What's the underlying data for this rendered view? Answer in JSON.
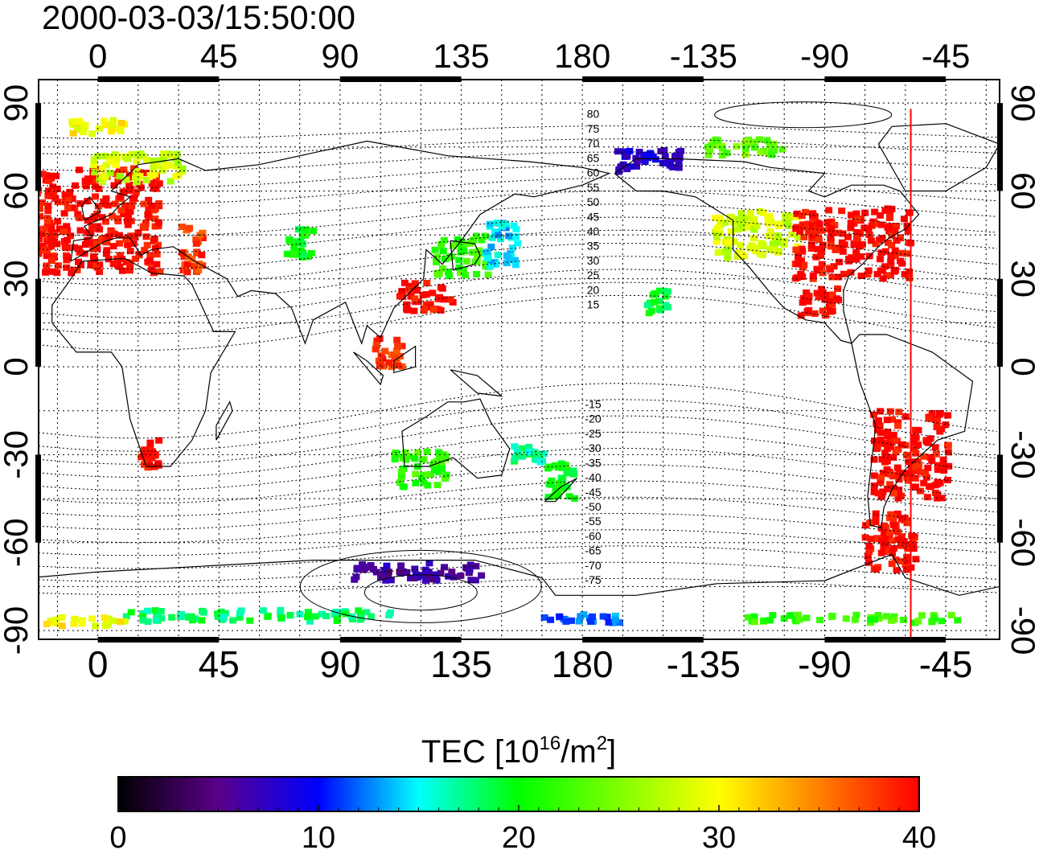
{
  "header": {
    "timestamp": "2000-03-03/15:50:00"
  },
  "map": {
    "lon_start": -22,
    "lon_end": 335,
    "lat_min": -93,
    "lat_max": 98,
    "top_ticks": [
      "0",
      "45",
      "90",
      "135",
      "180",
      "-135",
      "-90",
      "-45"
    ],
    "bottom_ticks": [
      "0",
      "45",
      "90",
      "135",
      "180",
      "-135",
      "-90",
      "-45"
    ],
    "tick_lons": [
      0,
      45,
      90,
      135,
      180,
      225,
      270,
      315
    ],
    "left_ticks": [
      "90",
      "60",
      "30",
      "0",
      "-30",
      "-60",
      "-90"
    ],
    "right_ticks": [
      "90",
      "60",
      "30",
      "0",
      "-30",
      "-60",
      "-90"
    ],
    "tick_lats": [
      90,
      60,
      30,
      0,
      -30,
      -60,
      -90
    ],
    "marker_lon": 302,
    "marker_color": "#ff0000",
    "contour_labels_north": [
      "80",
      "75",
      "70",
      "65",
      "60",
      "55",
      "50",
      "45",
      "40",
      "35",
      "30",
      "25",
      "20",
      "15"
    ],
    "contour_labels_south": [
      "-15",
      "-20",
      "-25",
      "-30",
      "-35",
      "-40",
      "-45",
      "-50",
      "-55",
      "-60",
      "-65",
      "-70",
      "-75"
    ],
    "contour_lats_north": [
      80,
      75,
      70,
      65,
      60,
      55,
      50,
      45,
      40,
      35,
      30,
      25,
      20,
      15
    ],
    "contour_lats_south": [
      -15,
      -20,
      -25,
      -30,
      -35,
      -40,
      -45,
      -50,
      -55,
      -60,
      -65,
      -70,
      -75
    ],
    "tec_patches": [
      {
        "lon": 0,
        "lat": 50,
        "w": 46,
        "h": 36,
        "value": 40
      },
      {
        "lon": 15,
        "lat": 68,
        "w": 34,
        "h": 10,
        "value": 28
      },
      {
        "lon": 0,
        "lat": 82,
        "w": 20,
        "h": 5,
        "value": 30
      },
      {
        "lon": 35,
        "lat": 40,
        "w": 8,
        "h": 16,
        "value": 38
      },
      {
        "lon": 20,
        "lat": -30,
        "w": 8,
        "h": 10,
        "value": 40
      },
      {
        "lon": 75,
        "lat": 42,
        "w": 10,
        "h": 10,
        "value": 20
      },
      {
        "lon": 135,
        "lat": 38,
        "w": 20,
        "h": 14,
        "value": 22
      },
      {
        "lon": 150,
        "lat": 42,
        "w": 12,
        "h": 16,
        "value": 14
      },
      {
        "lon": 122,
        "lat": 24,
        "w": 20,
        "h": 10,
        "value": 40
      },
      {
        "lon": 108,
        "lat": 5,
        "w": 10,
        "h": 10,
        "value": 38
      },
      {
        "lon": 120,
        "lat": -35,
        "w": 20,
        "h": 12,
        "value": 22
      },
      {
        "lon": 172,
        "lat": -40,
        "w": 10,
        "h": 14,
        "value": 20
      },
      {
        "lon": 160,
        "lat": -30,
        "w": 12,
        "h": 6,
        "value": 17
      },
      {
        "lon": 205,
        "lat": 70,
        "w": 24,
        "h": 8,
        "value": 8
      },
      {
        "lon": 240,
        "lat": 75,
        "w": 30,
        "h": 6,
        "value": 24
      },
      {
        "lon": 245,
        "lat": 45,
        "w": 32,
        "h": 16,
        "value": 28
      },
      {
        "lon": 280,
        "lat": 42,
        "w": 44,
        "h": 24,
        "value": 40
      },
      {
        "lon": 268,
        "lat": 22,
        "w": 14,
        "h": 10,
        "value": 40
      },
      {
        "lon": 302,
        "lat": -30,
        "w": 28,
        "h": 30,
        "value": 40
      },
      {
        "lon": 295,
        "lat": -60,
        "w": 20,
        "h": 20,
        "value": 40
      },
      {
        "lon": 208,
        "lat": 22,
        "w": 8,
        "h": 8,
        "value": 19
      },
      {
        "lon": 120,
        "lat": -70,
        "w": 50,
        "h": 6,
        "value": 6
      },
      {
        "lon": 60,
        "lat": -85,
        "w": 100,
        "h": 4,
        "value": 18
      },
      {
        "lon": 180,
        "lat": -86,
        "w": 30,
        "h": 3,
        "value": 12
      },
      {
        "lon": 280,
        "lat": -86,
        "w": 80,
        "h": 3,
        "value": 22
      },
      {
        "lon": -5,
        "lat": -87,
        "w": 30,
        "h": 3,
        "value": 30
      }
    ]
  },
  "colorbar": {
    "title": "TEC  [10",
    "title_sup": "16",
    "title_mid": "/m",
    "title_sup2": "2",
    "title_end": "]",
    "min": 0,
    "max": 40,
    "tick_labels": [
      "0",
      "10",
      "20",
      "30",
      "40"
    ],
    "tick_values": [
      0,
      10,
      20,
      30,
      40
    ],
    "stops": [
      {
        "value": 0,
        "color": "#000000"
      },
      {
        "value": 5,
        "color": "#5a008a"
      },
      {
        "value": 10,
        "color": "#0000ff"
      },
      {
        "value": 15,
        "color": "#00ffff"
      },
      {
        "value": 20,
        "color": "#00ff00"
      },
      {
        "value": 30,
        "color": "#ffff00"
      },
      {
        "value": 35,
        "color": "#ff8000"
      },
      {
        "value": 40,
        "color": "#ff0000"
      }
    ]
  }
}
